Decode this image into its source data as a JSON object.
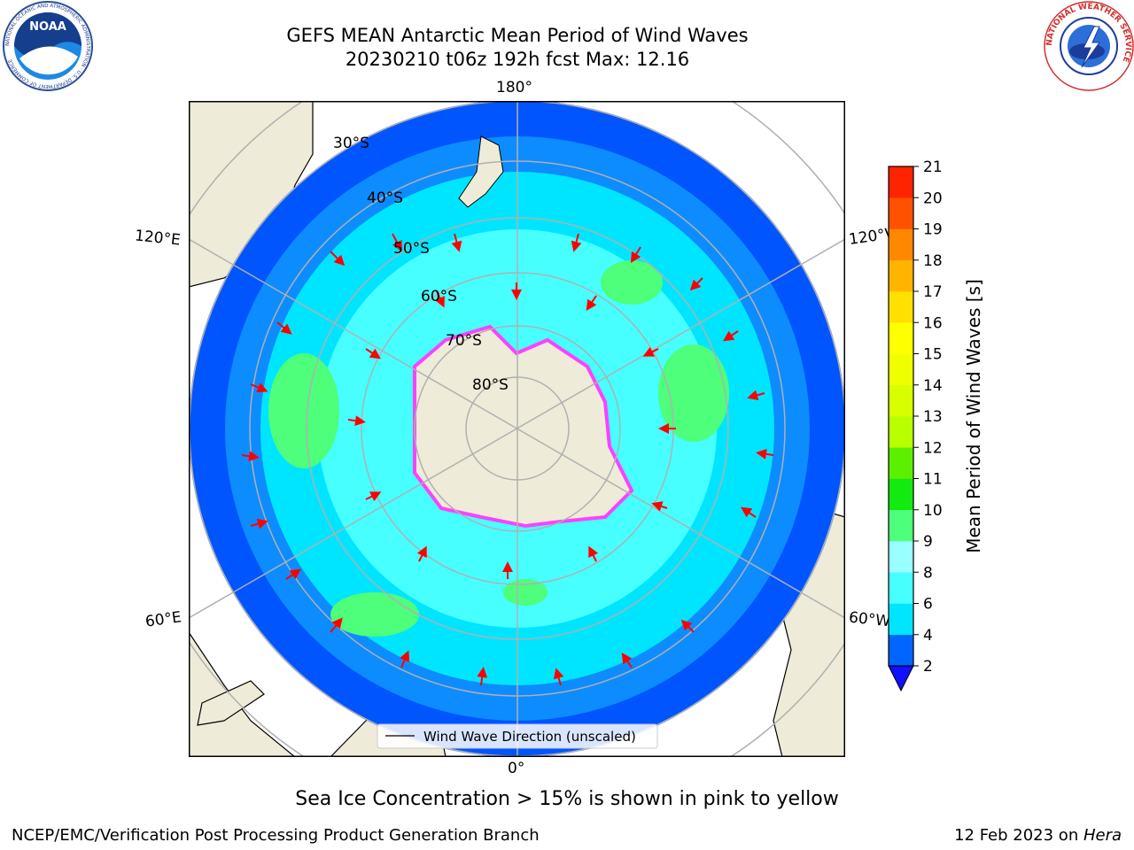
{
  "header": {
    "title_line1": "GEFS MEAN Antarctic Mean Period of Wind Waves",
    "title_line2": "20230210 t06z 192h fcst   Max: 12.16"
  },
  "logos": {
    "noaa_text": "NOAA",
    "noaa_ring_text": "NATIONAL OCEANIC AND ATMOSPHERIC ADMINISTRATION · U.S. DEPARTMENT OF COMMERCE",
    "nws_ring_text": "NATIONAL WEATHER SERVICE"
  },
  "map": {
    "projection": "south-polar-stereographic",
    "longitude_labels": {
      "top": "180°",
      "upper_left": "120°E",
      "upper_right": "120°W",
      "lower_left": "60°E",
      "lower_right": "60°W",
      "bottom": "0°"
    },
    "latitude_labels": [
      "30°S",
      "40°S",
      "50°S",
      "60°S",
      "70°S",
      "80°S"
    ],
    "legend_label": "Wind Wave Direction (unscaled)",
    "colors": {
      "land": "#eeecd8",
      "ice": "#ff40ff",
      "arrows": "#ff0000",
      "gridlines": "#b0b0b0"
    }
  },
  "colorbar": {
    "label": "Mean Period of Wind Waves [s]",
    "ticks": [
      "2",
      "4",
      "6",
      "8",
      "9",
      "10",
      "11",
      "12",
      "13",
      "14",
      "15",
      "16",
      "17",
      "18",
      "19",
      "20",
      "21"
    ],
    "colors": [
      "#0066ff",
      "#00e5ff",
      "#47ffff",
      "#9affff",
      "#4dff7a",
      "#12ea12",
      "#5cf000",
      "#b8ff00",
      "#d8ff00",
      "#f0ff00",
      "#ffff00",
      "#ffe000",
      "#ffb400",
      "#ff8800",
      "#ff5200",
      "#ff2400"
    ],
    "under_color": "#1010ff"
  },
  "subtitle": "Sea Ice Concentration > 15% is shown in pink to yellow",
  "footer": {
    "left": "NCEP/EMC/Verification Post Processing Product Generation Branch",
    "right_date": "12 Feb 2023 on ",
    "right_machine": "Hera"
  }
}
